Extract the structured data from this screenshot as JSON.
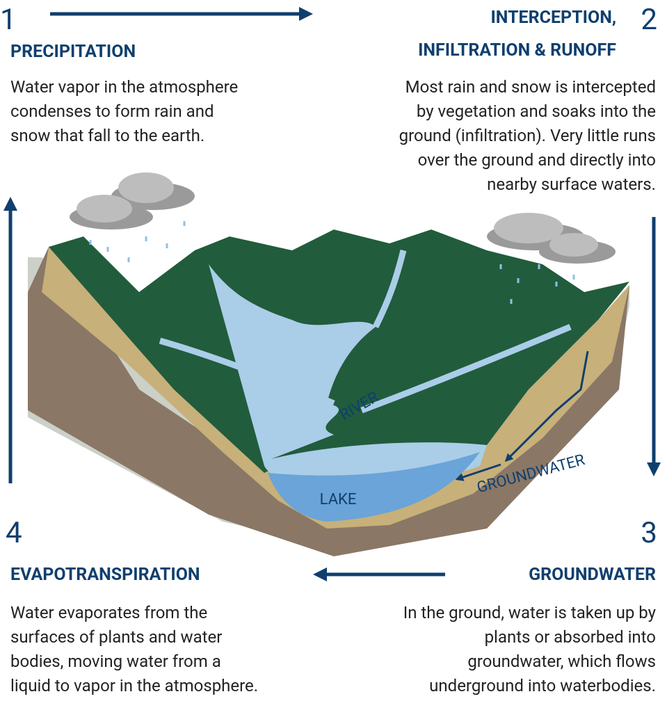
{
  "steps": [
    {
      "number": "1",
      "title": [
        "PRECIPITATION"
      ],
      "text": [
        "Water vapor in the atmosphere",
        "condenses to form rain and",
        "snow that fall to the earth."
      ]
    },
    {
      "number": "2",
      "title": [
        "INTERCEPTION,",
        "INFILTRATION & RUNOFF"
      ],
      "text": [
        "Most rain and snow is intercepted",
        "by vegetation and soaks into the",
        "ground (infiltration). Very little runs",
        "over the ground and directly into",
        "nearby surface waters."
      ]
    },
    {
      "number": "3",
      "title": [
        "GROUNDWATER"
      ],
      "text": [
        "In the ground, water is taken up by",
        "plants or absorbed into",
        "groundwater, which flows",
        "underground into waterbodies."
      ]
    },
    {
      "number": "4",
      "title": [
        "EVAPOTRANSPIRATION"
      ],
      "text": [
        "Water evaporates from the",
        "surfaces of plants and water",
        "bodies, moving water from a",
        "liquid to vapor in the atmosphere."
      ]
    }
  ],
  "labels": {
    "river": "RIVER",
    "lake": "LAKE",
    "groundwater": "GROUNDWATER"
  }
}
